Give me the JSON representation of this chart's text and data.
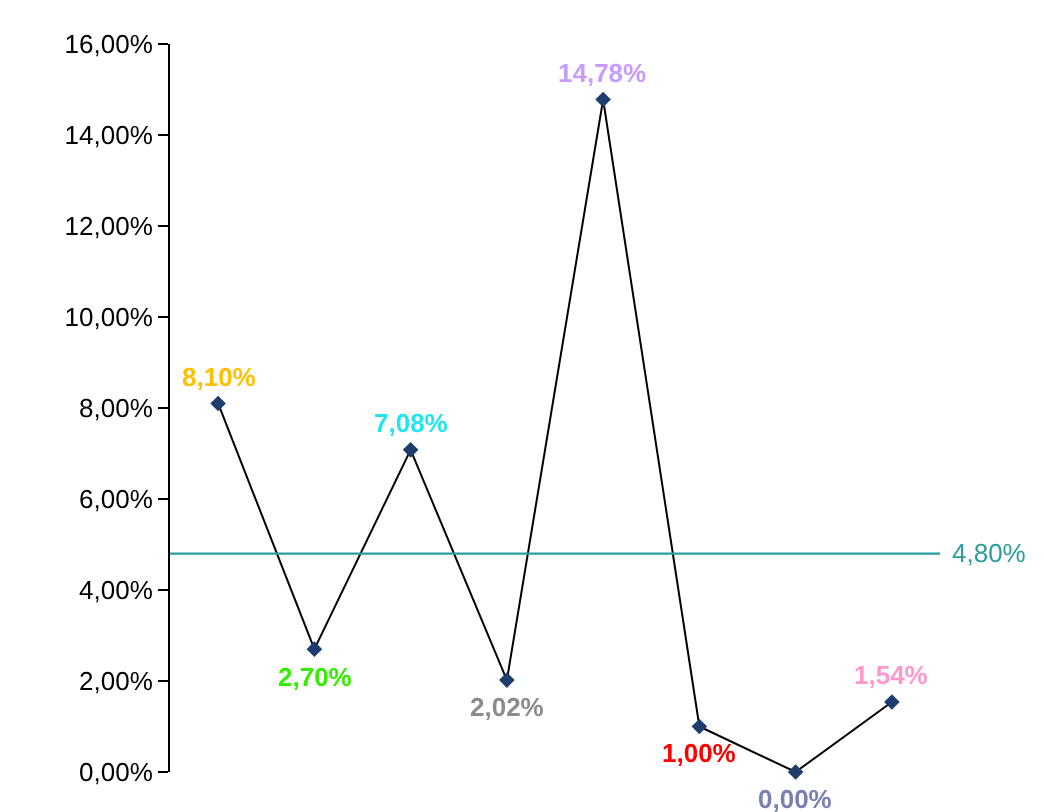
{
  "chart_data": {
    "type": "line",
    "categories": [
      null,
      null,
      null,
      null,
      null,
      null,
      null,
      null
    ],
    "series": [
      {
        "color": "#000000",
        "values": [
          8.1,
          2.7,
          7.08,
          2.02,
          14.78,
          1.0,
          0.0,
          1.54
        ],
        "value_labels": [
          "8,10%",
          "2,70%",
          "7,08%",
          "2,02%",
          "14,78%",
          "1,00%",
          "0,00%",
          "1,54%"
        ]
      }
    ],
    "marker": "diamond",
    "ylim": [
      0,
      16
    ],
    "yticks": [
      {
        "value": 0,
        "label": "0,00%"
      },
      {
        "value": 2,
        "label": "2,00%"
      },
      {
        "value": 4,
        "label": "4,00%"
      },
      {
        "value": 6,
        "label": "6,00%"
      },
      {
        "value": 8,
        "label": "8,00%"
      },
      {
        "value": 10,
        "label": "10,00%"
      },
      {
        "value": 12,
        "label": "12,00%"
      },
      {
        "value": 14,
        "label": "14,00%"
      },
      {
        "value": 16,
        "label": "16,00%"
      }
    ],
    "ref_lines": [
      {
        "axis": "y",
        "value": 4.8,
        "label": "4,80%",
        "color": "#2a9d9d"
      }
    ],
    "grid": false
  }
}
